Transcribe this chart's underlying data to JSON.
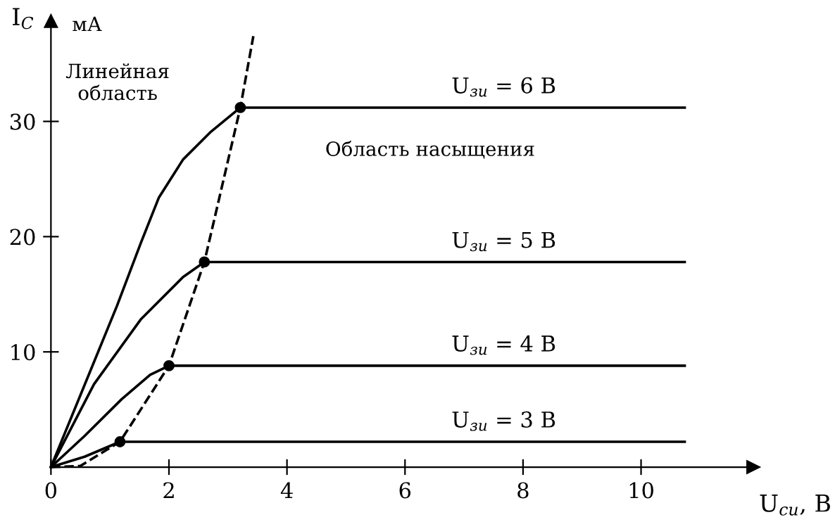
{
  "chart_data": {
    "type": "line",
    "xlabel": "U$_{си}$, В",
    "ylabel": "I$_{С}$",
    "xlim": [
      0,
      11.9
    ],
    "ylim": [
      0,
      38.7
    ],
    "xticks": [
      0,
      2,
      4,
      6,
      8,
      10
    ],
    "yticks": [
      10,
      20,
      30
    ],
    "grid": false,
    "legend": false,
    "series": [
      {
        "name": "U$_{зи}$ = 6 В",
        "color": "#000000",
        "x": [
          0,
          1.12,
          1.52,
          1.83,
          2.24,
          2.71,
          3.21,
          10.74
        ],
        "values": [
          0,
          14.0,
          19.4,
          23.4,
          26.7,
          29.1,
          31.2,
          31.2
        ]
      },
      {
        "name": "U$_{зи}$ = 5 В",
        "color": "#000000",
        "x": [
          0,
          0.73,
          1.52,
          2.24,
          2.6,
          10.74
        ],
        "values": [
          0,
          7.2,
          12.8,
          16.5,
          17.8,
          17.8
        ]
      },
      {
        "name": "U$_{зи}$ = 4 В",
        "color": "#000000",
        "x": [
          0,
          0.57,
          1.2,
          1.68,
          2.0,
          10.74
        ],
        "values": [
          0,
          2.7,
          5.9,
          8.0,
          8.8,
          8.8
        ]
      },
      {
        "name": "U$_{зи}$ = 3 В",
        "color": "#000000",
        "x": [
          0,
          0.57,
          1.17,
          10.74
        ],
        "values": [
          0,
          0.9,
          2.2,
          2.2
        ]
      },
      {
        "color": "#000000",
        "line_style": "dashed",
        "x": [
          0,
          0.5,
          1.17,
          2.0,
          2.6,
          3.21,
          3.43
        ],
        "values": [
          0,
          0.1,
          2.2,
          8.8,
          17.8,
          31.2,
          37.4
        ]
      },
      {
        "type": "scatter",
        "color": "#000000",
        "marker": "circle",
        "x": [
          1.17,
          2.0,
          2.6,
          3.21
        ],
        "values": [
          2.2,
          8.8,
          17.8,
          31.2
        ]
      }
    ],
    "annotations": [
      "мА",
      "Линейная\nобласть",
      "Область насыщения"
    ]
  }
}
